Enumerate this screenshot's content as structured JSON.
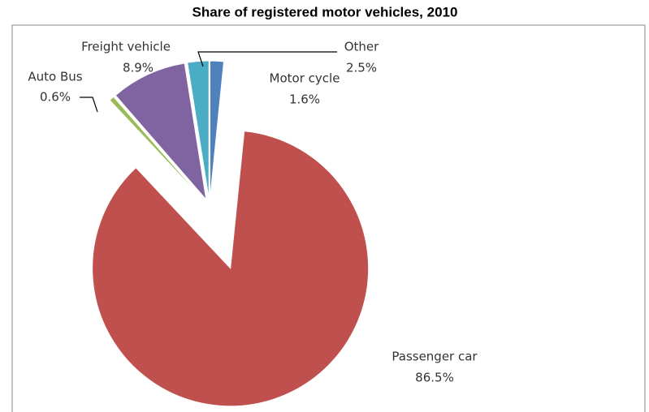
{
  "chart_data": {
    "type": "pie",
    "title": "Share of registered motor vehicles, 2010",
    "categories": [
      "Motor cycle",
      "Passenger car",
      "Auto Bus",
      "Freight vehicle",
      "Other"
    ],
    "values": [
      1.6,
      86.5,
      0.6,
      8.9,
      2.5
    ],
    "value_labels": [
      "1.6%",
      "86.5%",
      "0.6%",
      "8.9%",
      "2.5%"
    ],
    "colors": [
      "#4f81bd",
      "#c0504d",
      "#9bbb59",
      "#8064a2",
      "#4bacc6"
    ]
  }
}
